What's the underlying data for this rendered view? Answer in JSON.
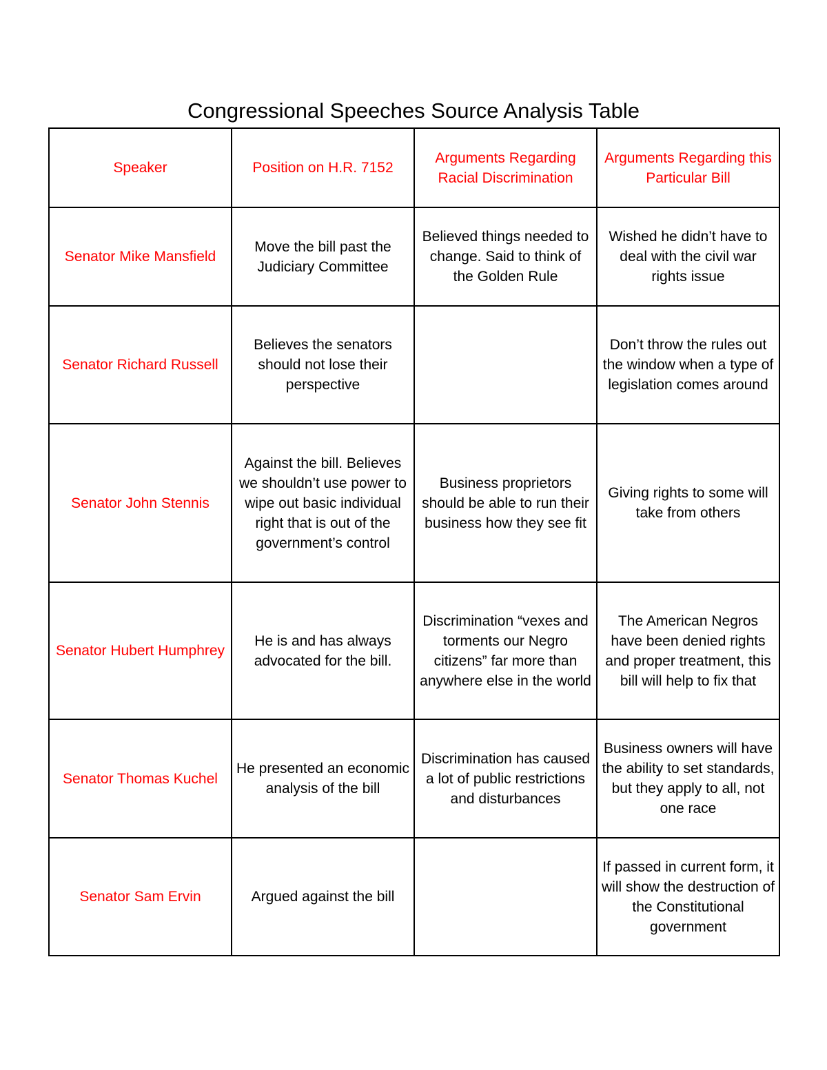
{
  "title": "Congressional Speeches Source Analysis Table",
  "accent_color": "#ff0000",
  "headers": [
    "Speaker",
    "Position on H.R. 7152",
    "Arguments Regarding Racial Discrimination",
    "Arguments Regarding this Particular Bill"
  ],
  "rows": [
    [
      "Senator Mike Mansfield",
      "Move the bill past the Judiciary Committee",
      "Believed things needed to change. Said to think of the Golden Rule",
      "Wished he didn’t have to deal with the civil war rights issue"
    ],
    [
      "Senator Richard Russell",
      "Believes the senators should not lose their perspective",
      "",
      "Don’t throw the rules out the window when a type of legislation comes around"
    ],
    [
      "Senator John Stennis",
      "Against the bill. Believes we shouldn’t use power to wipe out basic individual right that is out of the government’s control",
      "Business proprietors should be able to run their business how they see fit",
      "Giving rights to some will take from others"
    ],
    [
      "Senator Hubert Humphrey",
      "He is and has always advocated for the bill.",
      "Discrimination “vexes and torments our Negro citizens” far more than anywhere else in the world",
      "The American Negros have been denied rights and proper treatment, this bill will help to fix that"
    ],
    [
      "Senator Thomas Kuchel",
      "He presented an economic analysis of the bill",
      "Discrimination has caused a lot of public restrictions and disturbances",
      "Business owners will have the ability to set standards, but they apply to all, not one race"
    ],
    [
      "Senator Sam Ervin",
      "Argued against the bill",
      "",
      "If passed in current form, it will show the destruction of the Constitutional government"
    ]
  ]
}
